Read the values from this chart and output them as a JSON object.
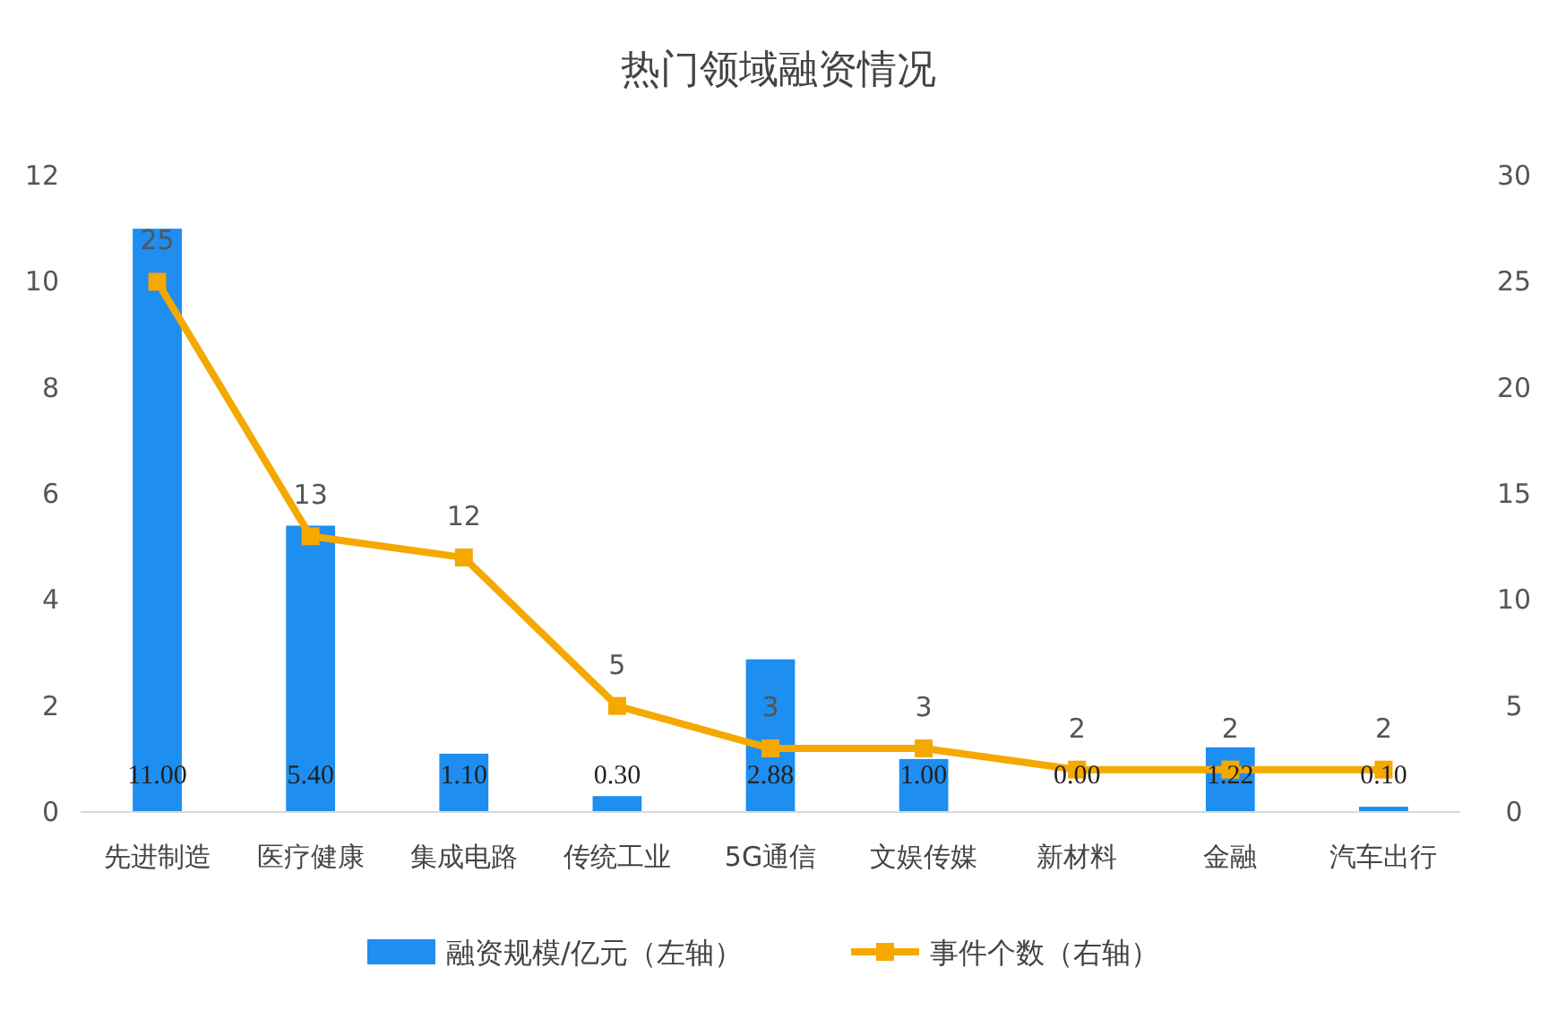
{
  "chart_data": {
    "type": "bar",
    "title": "热门领域融资情况",
    "categories": [
      "先进制造",
      "医疗健康",
      "集成电路",
      "传统工业",
      "5G通信",
      "文娱传媒",
      "新材料",
      "金融",
      "汽车出行"
    ],
    "series": [
      {
        "name": "融资规模/亿元（左轴）",
        "color": "#1e8ef0",
        "values": [
          11.0,
          5.4,
          1.1,
          0.3,
          2.88,
          1.0,
          0.0,
          1.22,
          0.1
        ],
        "value_labels": [
          "11.00",
          "5.40",
          "1.10",
          "0.30",
          "2.88",
          "1.00",
          "0.00",
          "1.22",
          "0.10"
        ]
      },
      {
        "name": "事件个数（右轴）",
        "type": "line",
        "axis": "y2",
        "color": "#f5a800",
        "marker": "square",
        "values": [
          25,
          13,
          12,
          5,
          3,
          3,
          2,
          2,
          2
        ]
      }
    ],
    "ylim": [
      0,
      12
    ],
    "yticks": [
      0,
      2,
      4,
      6,
      8,
      10,
      12
    ],
    "y2lim": [
      0,
      30
    ],
    "y2ticks": [
      0,
      5,
      10,
      15,
      20,
      25,
      30
    ],
    "data_labels": true,
    "grid": false,
    "legend": "bottom"
  }
}
